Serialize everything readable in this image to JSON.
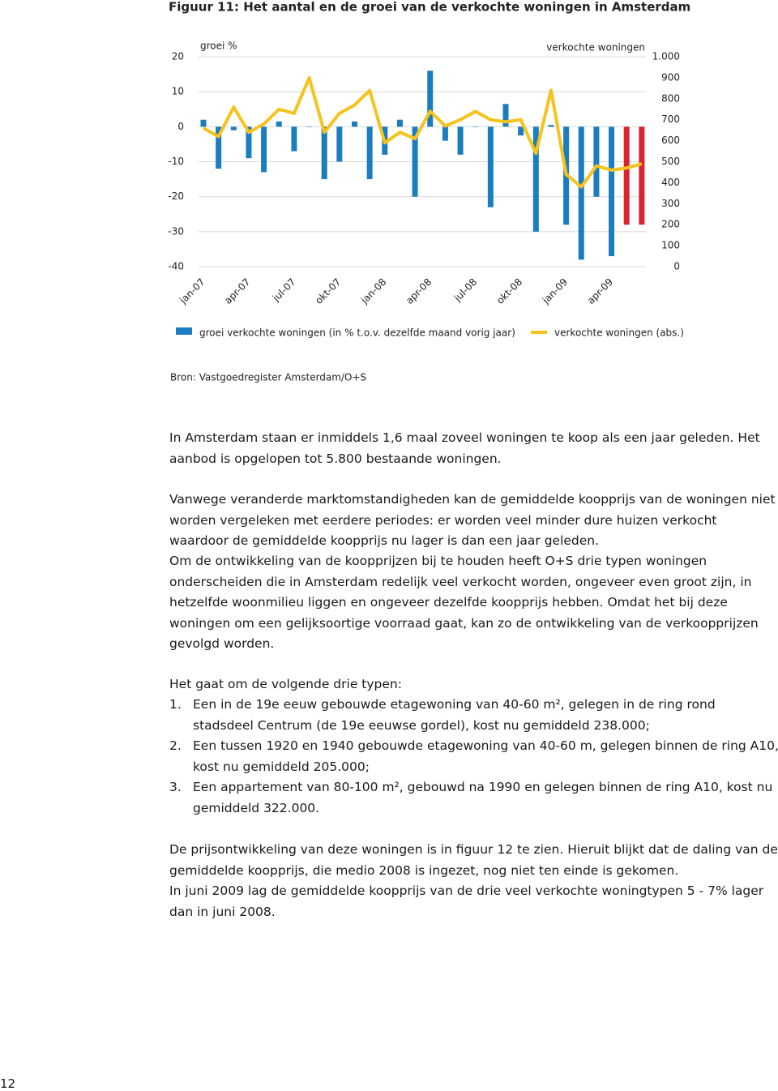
{
  "figure_title": "Figuur 11: Het aantal en de groei van de verkochte woningen in Amsterdam",
  "chart_data": {
    "type": "combo",
    "y_label": "groei %",
    "y2_label": "verkochte woningen",
    "categories": [
      "jan-07",
      null,
      null,
      "apr-07",
      null,
      null,
      "jul-07",
      null,
      null,
      "okt-07",
      null,
      null,
      "jan-08",
      null,
      null,
      "apr-08",
      null,
      null,
      "jul-08",
      null,
      null,
      "okt-08",
      null,
      null,
      "jan-09",
      null,
      null,
      "apr-09",
      null,
      null
    ],
    "series": [
      {
        "name": "groei verkochte woningen (in % t.o.v. dezelfde maand vorig jaar)",
        "type": "bar",
        "color": "#1a7dc0",
        "colors": [
          "#1a7dc0",
          "#1a7dc0",
          "#1a7dc0",
          "#1a7dc0",
          "#1a7dc0",
          "#1a7dc0",
          "#1a7dc0",
          "#1a7dc0",
          "#1a7dc0",
          "#1a7dc0",
          "#1a7dc0",
          "#1a7dc0",
          "#1a7dc0",
          "#1a7dc0",
          "#1a7dc0",
          "#1a7dc0",
          "#1a7dc0",
          "#1a7dc0",
          "#1a7dc0",
          "#1a7dc0",
          "#1a7dc0",
          "#1a7dc0",
          "#1a7dc0",
          "#1a7dc0",
          "#1a7dc0",
          "#1a7dc0",
          "#1a7dc0",
          "#1a7dc0",
          "#d9232d",
          "#d9232d"
        ],
        "values": [
          2,
          -12,
          -1,
          -9,
          -13,
          1.5,
          -7,
          0,
          -15,
          -10,
          1.5,
          -15,
          -8,
          2,
          -20,
          16,
          -4,
          -8,
          0,
          -23,
          6.5,
          -2.5,
          -30,
          0.5,
          -28,
          -38,
          -20,
          -37,
          -28,
          -28
        ]
      },
      {
        "name": "verkochte woningen (abs.)",
        "type": "line",
        "color": "#f5c31c",
        "axis": "y2",
        "values": [
          660,
          620,
          760,
          640,
          680,
          750,
          730,
          900,
          640,
          730,
          770,
          840,
          590,
          640,
          610,
          740,
          670,
          700,
          740,
          700,
          690,
          700,
          540,
          840,
          440,
          380,
          480,
          460,
          470,
          490
        ]
      }
    ],
    "ylim": [
      -40,
      20
    ],
    "yticks": [
      -40,
      -30,
      -20,
      -10,
      0,
      10,
      20
    ],
    "y2lim": [
      0,
      1000
    ],
    "y2ticks": [
      0,
      100,
      200,
      300,
      400,
      500,
      600,
      700,
      800,
      900,
      {
        "value": 1000,
        "label": "1.000"
      }
    ],
    "grid": true
  },
  "source": "Bron: Vastgoedregister Amsterdam/O+S",
  "paragraphs": [
    "In Amsterdam staan er inmiddels 1,6 maal zoveel woningen te koop als een jaar geleden. Het aanbod is opgelopen tot 5.800 bestaande woningen.",
    "Vanwege veranderde marktomstandigheden kan de gemiddelde koopprijs van de woningen niet worden vergeleken met eerdere periodes: er worden veel minder dure huizen verkocht waardoor de gemiddelde koopprijs nu lager is dan een jaar geleden.",
    "Om de ontwikkeling van de koopprijzen bij te houden heeft O+S drie typen woningen onderscheiden die in Amsterdam redelijk veel verkocht worden, ongeveer even groot zijn, in hetzelfde woonmilieu liggen en ongeveer dezelfde koopprijs hebben. Omdat het bij deze woningen om een gelijksoortige voorraad gaat, kan zo de ontwikkeling van de verkoopprijzen gevolgd worden."
  ],
  "list_intro": "Het gaat om de volgende drie typen:",
  "list": [
    {
      "number": "1.",
      "text": "Een in de 19e eeuw gebouwde etagewoning van 40-60 m², gelegen in de ring rond stadsdeel Centrum (de 19e eeuwse gordel), kost nu gemiddeld  238.000;"
    },
    {
      "number": "2.",
      "text": "Een tussen 1920 en 1940 gebouwde etagewoning van 40-60 m, gelegen binnen de ring A10, kost nu gemiddeld  205.000;"
    },
    {
      "number": "3.",
      "text": "Een appartement van 80-100 m², gebouwd na 1990 en gelegen binnen de ring A10, kost nu gemiddeld  322.000."
    }
  ],
  "closing": [
    "De prijsontwikkeling van deze woningen is in figuur 12 te zien. Hieruit blijkt dat de daling van de gemiddelde koopprijs, die medio 2008 is ingezet, nog niet ten einde is gekomen.",
    "In juni 2009 lag de gemiddelde koopprijs van de drie veel verkochte woningtypen 5 - 7% lager dan in juni 2008."
  ],
  "page_number": "12"
}
